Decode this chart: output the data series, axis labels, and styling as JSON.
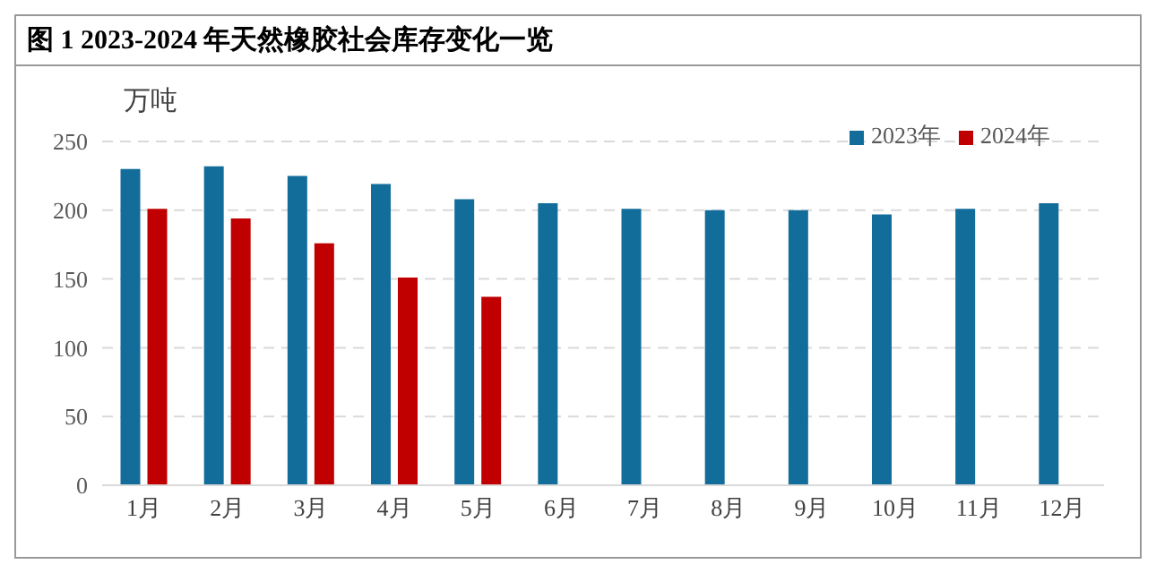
{
  "chart_data": {
    "type": "bar",
    "title": "图 1 2023-2024 年天然橡胶社会库存变化一览",
    "ylabel": "万吨",
    "categories": [
      "1月",
      "2月",
      "3月",
      "4月",
      "5月",
      "6月",
      "7月",
      "8月",
      "9月",
      "10月",
      "11月",
      "12月"
    ],
    "series": [
      {
        "name": "2023年",
        "color": "#136d9b",
        "values": [
          230,
          232,
          225,
          219,
          208,
          205,
          201,
          200,
          200,
          197,
          201,
          205
        ]
      },
      {
        "name": "2024年",
        "color": "#c00000",
        "values": [
          201,
          194,
          176,
          151,
          137,
          null,
          null,
          null,
          null,
          null,
          null,
          null
        ]
      }
    ],
    "ylim": [
      0,
      250
    ],
    "yticks": [
      0,
      50,
      100,
      150,
      200,
      250
    ],
    "grid": "y",
    "legend": "top right"
  }
}
